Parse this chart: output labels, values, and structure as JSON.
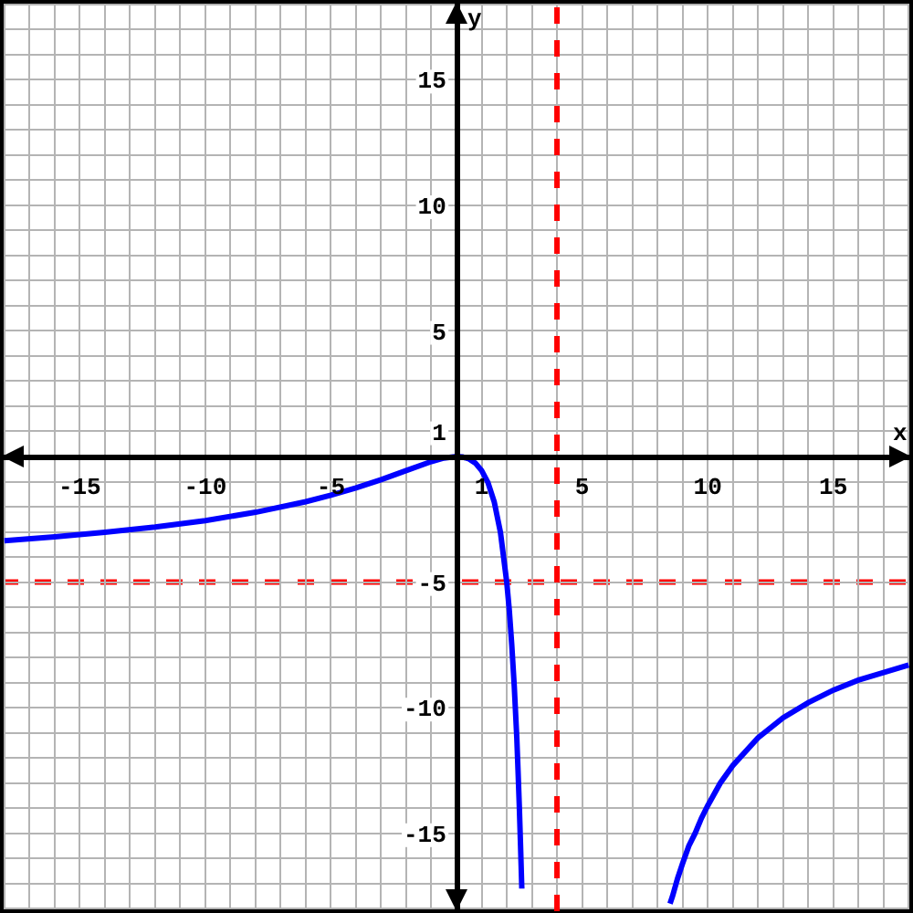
{
  "chart_data": {
    "type": "line",
    "xlabel": "x",
    "ylabel": "y",
    "series": [
      {
        "color": "#0000ff",
        "x": [
          -18,
          -16,
          -14,
          -12,
          -10,
          -8,
          -6,
          -5,
          -4,
          -3,
          -2,
          -1,
          -0.5,
          0,
          0.25,
          0.5,
          0.75,
          1,
          1.25,
          1.5,
          1.75,
          2,
          2.1,
          2.2,
          2.3,
          2.4,
          2.45,
          2.5,
          2.55,
          2.6
        ],
        "values": [
          -3.35,
          -3.2,
          -3.02,
          -2.81,
          -2.55,
          -2.22,
          -1.8,
          -1.54,
          -1.25,
          -0.92,
          -0.56,
          -0.2,
          -0.06,
          0,
          -0.02,
          -0.1,
          -0.26,
          -0.56,
          -1.03,
          -1.8,
          -3.02,
          -5,
          -6.1,
          -7.5,
          -9.15,
          -11.2,
          -12.5,
          -13.9,
          -15.5,
          -17.2
        ]
      },
      {
        "color": "#0000ff",
        "x": [
          8.5,
          8.6,
          8.8,
          9,
          9.25,
          9.5,
          9.75,
          10,
          10.5,
          11,
          12,
          13,
          14,
          15,
          16,
          17,
          18
        ],
        "values": [
          -17.8,
          -17.5,
          -16.8,
          -16.2,
          -15.5,
          -15,
          -14.4,
          -13.9,
          -13,
          -12.3,
          -11.2,
          -10.4,
          -9.8,
          -9.3,
          -8.9,
          -8.6,
          -8.3
        ]
      }
    ],
    "xlim": [
      -18.1,
      18.1
    ],
    "ylim": [
      -18.1,
      18.1
    ],
    "xticks": [
      -15,
      -10,
      -5,
      1,
      5,
      10,
      15
    ],
    "yticks": [
      -15,
      -10,
      -5,
      1,
      5,
      10,
      15
    ],
    "grid": true,
    "line_style": "solid",
    "marker": "none",
    "ref_lines": [
      {
        "axis": "x",
        "value": 4,
        "color": "#ff0000",
        "line_style": "dashed"
      },
      {
        "axis": "y",
        "value": -5,
        "color": "#ff0000",
        "line_style": "dashed"
      }
    ]
  }
}
